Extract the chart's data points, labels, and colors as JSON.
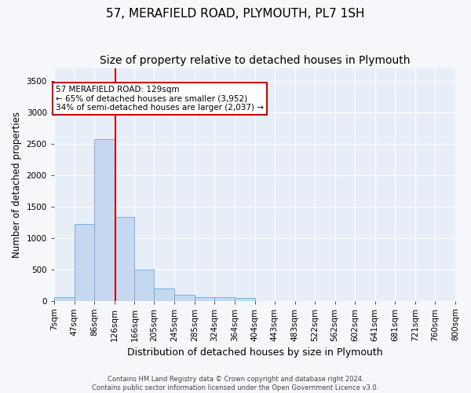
{
  "title": "57, MERAFIELD ROAD, PLYMOUTH, PL7 1SH",
  "subtitle": "Size of property relative to detached houses in Plymouth",
  "xlabel": "Distribution of detached houses by size in Plymouth",
  "ylabel": "Number of detached properties",
  "footer_line1": "Contains HM Land Registry data © Crown copyright and database right 2024.",
  "footer_line2": "Contains public sector information licensed under the Open Government Licence v3.0.",
  "bin_labels": [
    "7sqm",
    "47sqm",
    "86sqm",
    "126sqm",
    "166sqm",
    "205sqm",
    "245sqm",
    "285sqm",
    "324sqm",
    "364sqm",
    "404sqm",
    "443sqm",
    "483sqm",
    "522sqm",
    "562sqm",
    "602sqm",
    "641sqm",
    "681sqm",
    "721sqm",
    "760sqm",
    "800sqm"
  ],
  "bin_edges": [
    7,
    47,
    86,
    126,
    166,
    205,
    245,
    285,
    324,
    364,
    404,
    443,
    483,
    522,
    562,
    602,
    641,
    681,
    721,
    760,
    800
  ],
  "bar_values": [
    60,
    1220,
    2570,
    1330,
    500,
    190,
    100,
    55,
    55,
    50,
    0,
    0,
    0,
    0,
    0,
    0,
    0,
    0,
    0,
    0
  ],
  "bar_color": "#c5d8f0",
  "bar_edgecolor": "#6aaad4",
  "property_size": 129,
  "vline_color": "#cc0000",
  "annotation_line1": "57 MERAFIELD ROAD: 129sqm",
  "annotation_line2": "← 65% of detached houses are smaller (3,952)",
  "annotation_line3": "34% of semi-detached houses are larger (2,037) →",
  "annotation_bbox_facecolor": "#ffffff",
  "annotation_bbox_edgecolor": "#cc0000",
  "ylim": [
    0,
    3700
  ],
  "yticks": [
    0,
    500,
    1000,
    1500,
    2000,
    2500,
    3000,
    3500
  ],
  "bg_color": "#e8eef7",
  "fig_bg_color": "#f5f7fa",
  "grid_color": "#ffffff",
  "title_fontsize": 11,
  "subtitle_fontsize": 10,
  "ylabel_fontsize": 8.5,
  "xlabel_fontsize": 9,
  "tick_fontsize": 7.5,
  "footer_fontsize": 6,
  "annotation_fontsize": 7.5
}
